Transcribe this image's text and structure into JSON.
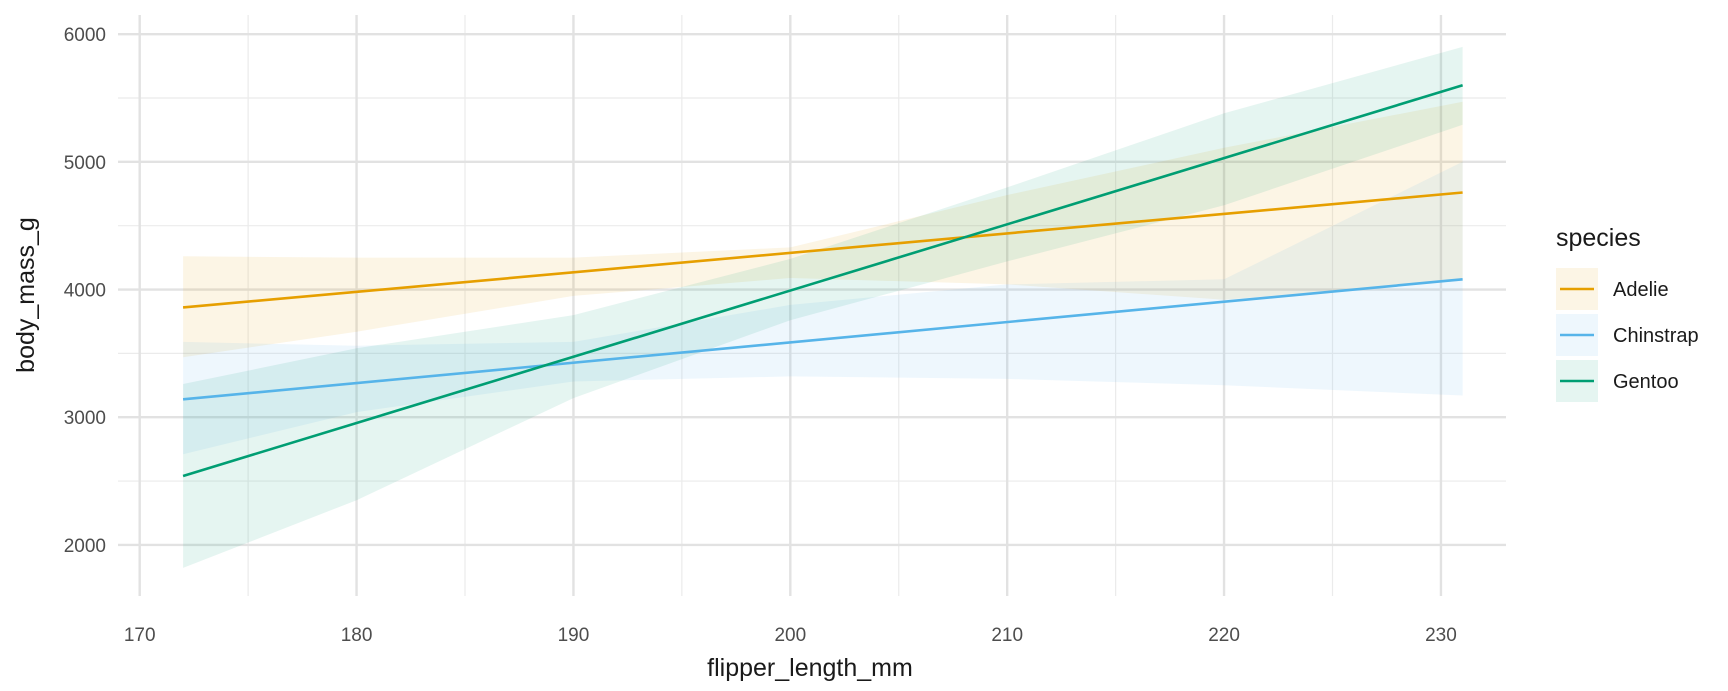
{
  "chart_data": {
    "type": "line",
    "xlabel": "flipper_length_mm",
    "ylabel": "body_mass_g",
    "xlim": [
      169,
      233
    ],
    "ylim": [
      1600,
      6150
    ],
    "x_ticks": [
      170,
      180,
      190,
      200,
      210,
      220,
      230
    ],
    "y_ticks": [
      2000,
      3000,
      4000,
      5000,
      6000
    ],
    "grid": true,
    "legend": {
      "title": "species",
      "position": "right"
    },
    "series": [
      {
        "name": "Adelie",
        "color": "#E69F00",
        "x": [
          172,
          231
        ],
        "y": [
          3860,
          4760
        ],
        "band_x": [
          172,
          180,
          190,
          200,
          210,
          220,
          231
        ],
        "band_lower": [
          3470,
          3670,
          3950,
          4090,
          4040,
          3920,
          4070
        ],
        "band_upper": [
          4260,
          4250,
          4250,
          4330,
          4740,
          5110,
          5470
        ]
      },
      {
        "name": "Chinstrap",
        "color": "#56B4E9",
        "x": [
          172,
          231
        ],
        "y": [
          3140,
          4080
        ],
        "band_x": [
          172,
          180,
          190,
          200,
          210,
          220,
          231
        ],
        "band_lower": [
          2710,
          3040,
          3280,
          3320,
          3300,
          3250,
          3170
        ],
        "band_upper": [
          3590,
          3560,
          3590,
          3880,
          4040,
          4080,
          5000
        ]
      },
      {
        "name": "Gentoo",
        "color": "#009E73",
        "x": [
          172,
          231
        ],
        "y": [
          2540,
          5600
        ],
        "band_x": [
          172,
          180,
          190,
          200,
          210,
          220,
          231
        ],
        "band_lower": [
          1820,
          2350,
          3150,
          3760,
          4220,
          4660,
          5290
        ],
        "band_upper": [
          3260,
          3540,
          3800,
          4240,
          4800,
          5380,
          5900
        ]
      }
    ]
  }
}
